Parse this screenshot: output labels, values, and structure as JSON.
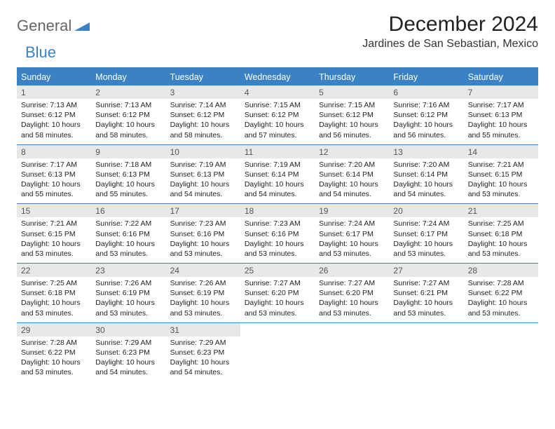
{
  "logo": {
    "general": "General",
    "blue": "Blue"
  },
  "title": "December 2024",
  "location": "Jardines de San Sebastian, Mexico",
  "colors": {
    "header_bg": "#3b82c4",
    "header_fg": "#ffffff",
    "date_bg": "#e8e8e8",
    "date_fg": "#555555",
    "text": "#222222",
    "rule": "#3b82c4",
    "bg": "#ffffff",
    "logo_gray": "#666666",
    "logo_blue": "#3b82c4"
  },
  "dayNames": [
    "Sunday",
    "Monday",
    "Tuesday",
    "Wednesday",
    "Thursday",
    "Friday",
    "Saturday"
  ],
  "weeks": [
    [
      {
        "d": "1",
        "sr": "7:13 AM",
        "ss": "6:12 PM",
        "dl": "10 hours and 58 minutes."
      },
      {
        "d": "2",
        "sr": "7:13 AM",
        "ss": "6:12 PM",
        "dl": "10 hours and 58 minutes."
      },
      {
        "d": "3",
        "sr": "7:14 AM",
        "ss": "6:12 PM",
        "dl": "10 hours and 58 minutes."
      },
      {
        "d": "4",
        "sr": "7:15 AM",
        "ss": "6:12 PM",
        "dl": "10 hours and 57 minutes."
      },
      {
        "d": "5",
        "sr": "7:15 AM",
        "ss": "6:12 PM",
        "dl": "10 hours and 56 minutes."
      },
      {
        "d": "6",
        "sr": "7:16 AM",
        "ss": "6:12 PM",
        "dl": "10 hours and 56 minutes."
      },
      {
        "d": "7",
        "sr": "7:17 AM",
        "ss": "6:13 PM",
        "dl": "10 hours and 55 minutes."
      }
    ],
    [
      {
        "d": "8",
        "sr": "7:17 AM",
        "ss": "6:13 PM",
        "dl": "10 hours and 55 minutes."
      },
      {
        "d": "9",
        "sr": "7:18 AM",
        "ss": "6:13 PM",
        "dl": "10 hours and 55 minutes."
      },
      {
        "d": "10",
        "sr": "7:19 AM",
        "ss": "6:13 PM",
        "dl": "10 hours and 54 minutes."
      },
      {
        "d": "11",
        "sr": "7:19 AM",
        "ss": "6:14 PM",
        "dl": "10 hours and 54 minutes."
      },
      {
        "d": "12",
        "sr": "7:20 AM",
        "ss": "6:14 PM",
        "dl": "10 hours and 54 minutes."
      },
      {
        "d": "13",
        "sr": "7:20 AM",
        "ss": "6:14 PM",
        "dl": "10 hours and 54 minutes."
      },
      {
        "d": "14",
        "sr": "7:21 AM",
        "ss": "6:15 PM",
        "dl": "10 hours and 53 minutes."
      }
    ],
    [
      {
        "d": "15",
        "sr": "7:21 AM",
        "ss": "6:15 PM",
        "dl": "10 hours and 53 minutes."
      },
      {
        "d": "16",
        "sr": "7:22 AM",
        "ss": "6:16 PM",
        "dl": "10 hours and 53 minutes."
      },
      {
        "d": "17",
        "sr": "7:23 AM",
        "ss": "6:16 PM",
        "dl": "10 hours and 53 minutes."
      },
      {
        "d": "18",
        "sr": "7:23 AM",
        "ss": "6:16 PM",
        "dl": "10 hours and 53 minutes."
      },
      {
        "d": "19",
        "sr": "7:24 AM",
        "ss": "6:17 PM",
        "dl": "10 hours and 53 minutes."
      },
      {
        "d": "20",
        "sr": "7:24 AM",
        "ss": "6:17 PM",
        "dl": "10 hours and 53 minutes."
      },
      {
        "d": "21",
        "sr": "7:25 AM",
        "ss": "6:18 PM",
        "dl": "10 hours and 53 minutes."
      }
    ],
    [
      {
        "d": "22",
        "sr": "7:25 AM",
        "ss": "6:18 PM",
        "dl": "10 hours and 53 minutes."
      },
      {
        "d": "23",
        "sr": "7:26 AM",
        "ss": "6:19 PM",
        "dl": "10 hours and 53 minutes."
      },
      {
        "d": "24",
        "sr": "7:26 AM",
        "ss": "6:19 PM",
        "dl": "10 hours and 53 minutes."
      },
      {
        "d": "25",
        "sr": "7:27 AM",
        "ss": "6:20 PM",
        "dl": "10 hours and 53 minutes."
      },
      {
        "d": "26",
        "sr": "7:27 AM",
        "ss": "6:20 PM",
        "dl": "10 hours and 53 minutes."
      },
      {
        "d": "27",
        "sr": "7:27 AM",
        "ss": "6:21 PM",
        "dl": "10 hours and 53 minutes."
      },
      {
        "d": "28",
        "sr": "7:28 AM",
        "ss": "6:22 PM",
        "dl": "10 hours and 53 minutes."
      }
    ],
    [
      {
        "d": "29",
        "sr": "7:28 AM",
        "ss": "6:22 PM",
        "dl": "10 hours and 53 minutes."
      },
      {
        "d": "30",
        "sr": "7:29 AM",
        "ss": "6:23 PM",
        "dl": "10 hours and 54 minutes."
      },
      {
        "d": "31",
        "sr": "7:29 AM",
        "ss": "6:23 PM",
        "dl": "10 hours and 54 minutes."
      },
      null,
      null,
      null,
      null
    ]
  ],
  "labels": {
    "sunrise": "Sunrise: ",
    "sunset": "Sunset: ",
    "daylight": "Daylight: "
  }
}
